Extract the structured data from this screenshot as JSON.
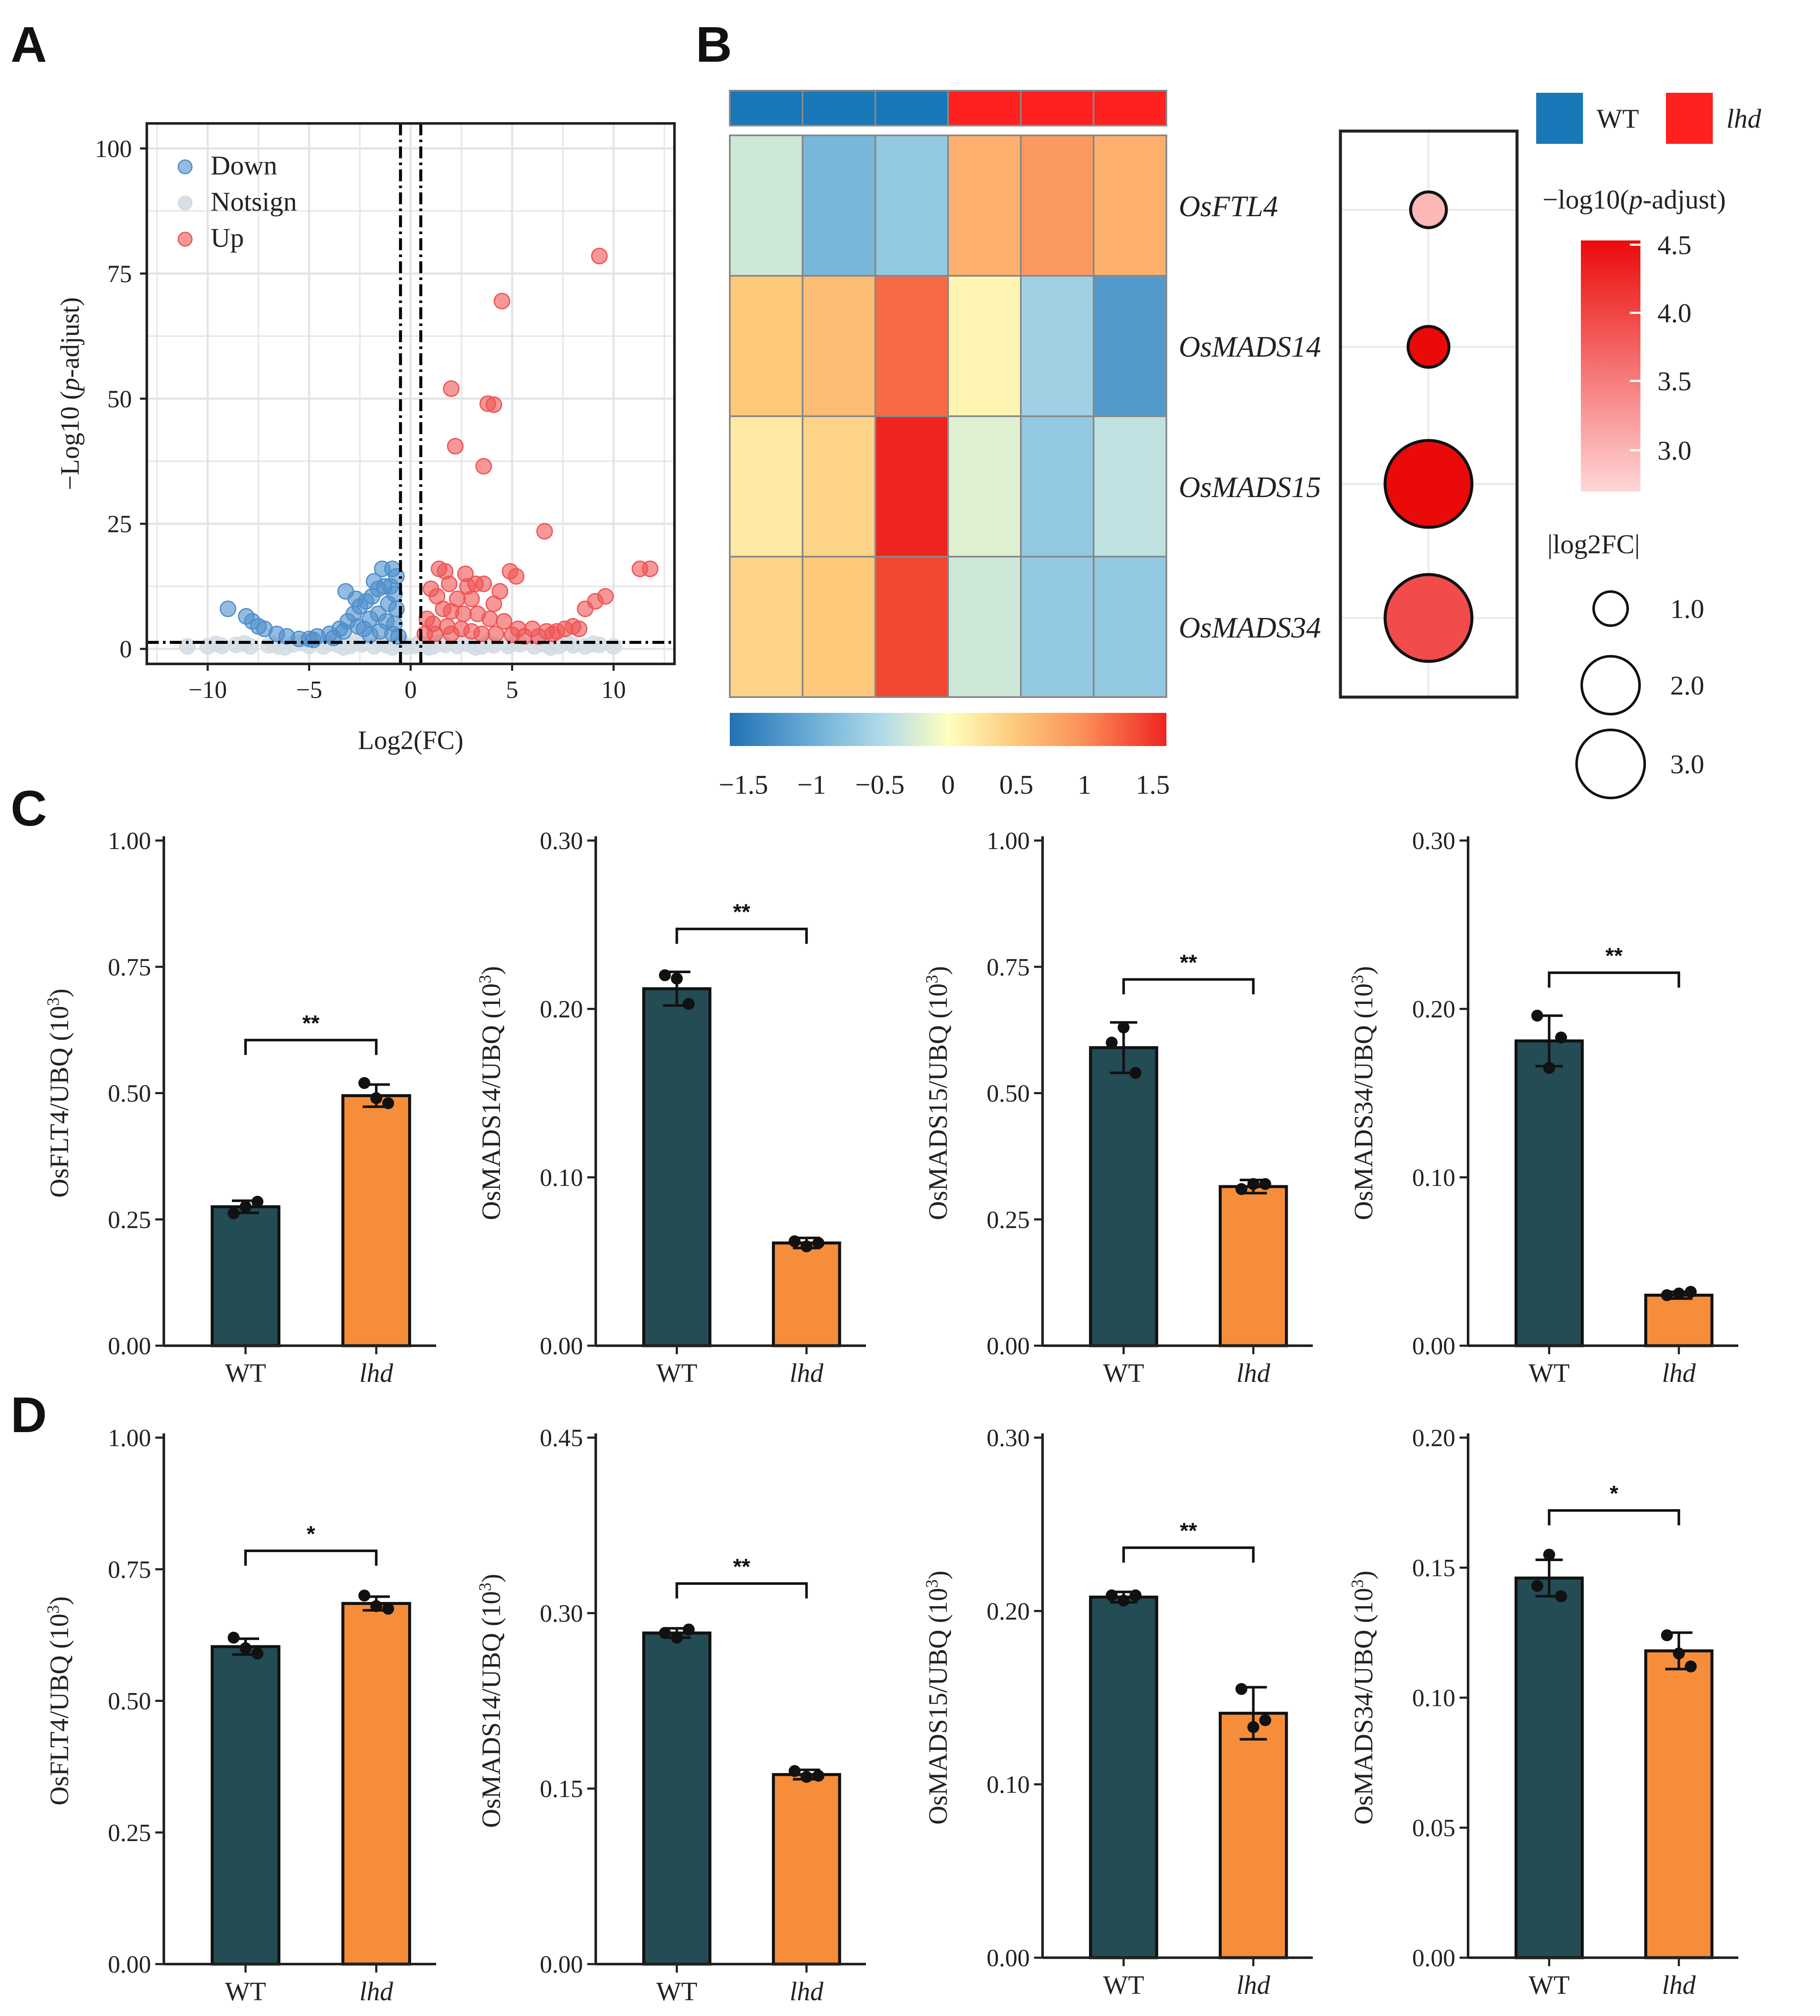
{
  "panels": {
    "A": "A",
    "B": "B",
    "C": "C",
    "D": "D"
  },
  "colors": {
    "wt": "#234c54",
    "lhd": "#f58d3a",
    "down": "#4e8fcb",
    "notsign": "#d4dde4",
    "up": "#f05454",
    "wt_legend": "#1878b8",
    "lhd_legend": "#ff2020"
  },
  "chart_data": [
    {
      "id": "A",
      "type": "scatter",
      "title": "",
      "xlabel": "Log2(FC)",
      "ylabel_prefix": "−Log10 (",
      "ylabel_italic": "p",
      "ylabel_suffix": "-adjust)",
      "xlim": [
        -13,
        13
      ],
      "ylim": [
        -3,
        105
      ],
      "xticks": [
        -10,
        -5,
        0,
        5,
        10
      ],
      "yticks": [
        0,
        25,
        50,
        75,
        100
      ],
      "thresholds": {
        "x": [
          -0.5,
          0.5
        ],
        "y": 1.3
      },
      "legend": [
        "Down",
        "Notsign",
        "Up"
      ],
      "series": [
        {
          "name": "Up",
          "points": [
            [
              9.3,
              78.5
            ],
            [
              4.5,
              69.5
            ],
            [
              2.0,
              52.0
            ],
            [
              3.8,
              49.0
            ],
            [
              4.1,
              48.8
            ],
            [
              2.2,
              40.5
            ],
            [
              3.6,
              36.5
            ],
            [
              6.6,
              23.5
            ],
            [
              11.3,
              16.0
            ],
            [
              11.8,
              16.0
            ],
            [
              1.4,
              16.0
            ],
            [
              1.7,
              15.5
            ],
            [
              2.7,
              15.0
            ],
            [
              4.9,
              15.5
            ],
            [
              5.2,
              14.5
            ],
            [
              3.2,
              13.0
            ],
            [
              3.6,
              13.0
            ],
            [
              9.6,
              10.5
            ],
            [
              9.1,
              9.5
            ],
            [
              8.6,
              8.0
            ],
            [
              1.0,
              12.0
            ],
            [
              1.3,
              10.5
            ],
            [
              2.3,
              10.0
            ],
            [
              3.0,
              10.0
            ],
            [
              4.1,
              9.0
            ],
            [
              1.6,
              8.0
            ],
            [
              2.0,
              7.5
            ],
            [
              2.6,
              7.0
            ],
            [
              3.3,
              7.0
            ],
            [
              3.9,
              6.0
            ],
            [
              4.6,
              5.5
            ],
            [
              5.3,
              4.0
            ],
            [
              6.0,
              4.0
            ],
            [
              6.7,
              3.5
            ],
            [
              7.2,
              3.5
            ],
            [
              7.6,
              4.0
            ],
            [
              8.0,
              4.5
            ],
            [
              0.8,
              6.0
            ],
            [
              1.1,
              5.0
            ],
            [
              1.8,
              4.5
            ],
            [
              2.5,
              4.0
            ],
            [
              3.0,
              3.5
            ],
            [
              3.5,
              3.0
            ],
            [
              4.2,
              3.0
            ],
            [
              5.0,
              2.8
            ],
            [
              5.6,
              2.5
            ],
            [
              6.3,
              2.5
            ],
            [
              7.0,
              3.0
            ],
            [
              0.7,
              3.0
            ],
            [
              1.2,
              3.0
            ],
            [
              2.0,
              3.0
            ],
            [
              8.3,
              4.0
            ],
            [
              2.8,
              12.5
            ],
            [
              1.9,
              13.0
            ],
            [
              4.4,
              11.5
            ]
          ]
        },
        {
          "name": "Down",
          "points": [
            [
              -9.0,
              8.0
            ],
            [
              -8.1,
              6.5
            ],
            [
              -7.8,
              5.5
            ],
            [
              -7.5,
              4.5
            ],
            [
              -7.2,
              4.0
            ],
            [
              -6.6,
              3.0
            ],
            [
              -6.1,
              2.5
            ],
            [
              -5.5,
              2.0
            ],
            [
              -5.0,
              2.0
            ],
            [
              -4.6,
              2.5
            ],
            [
              -4.0,
              3.0
            ],
            [
              -3.5,
              4.0
            ],
            [
              -3.1,
              5.5
            ],
            [
              -2.8,
              7.0
            ],
            [
              -2.5,
              8.5
            ],
            [
              -2.2,
              9.5
            ],
            [
              -3.2,
              11.5
            ],
            [
              -2.7,
              10.0
            ],
            [
              -1.9,
              10.5
            ],
            [
              -1.6,
              12.0
            ],
            [
              -1.3,
              12.5
            ],
            [
              -1.0,
              12.5
            ],
            [
              -0.8,
              11.0
            ],
            [
              -1.4,
              16.0
            ],
            [
              -0.9,
              16.0
            ],
            [
              -0.7,
              14.5
            ],
            [
              -1.1,
              9.0
            ],
            [
              -0.7,
              8.0
            ],
            [
              -1.6,
              7.0
            ],
            [
              -2.0,
              6.0
            ],
            [
              -1.2,
              5.5
            ],
            [
              -0.8,
              5.0
            ],
            [
              -2.6,
              4.5
            ],
            [
              -3.3,
              3.5
            ],
            [
              -1.5,
              3.5
            ],
            [
              -0.9,
              3.0
            ],
            [
              -2.0,
              2.8
            ],
            [
              -0.6,
              2.5
            ],
            [
              -4.8,
              1.8
            ],
            [
              -3.8,
              2.2
            ],
            [
              -1.8,
              13.5
            ],
            [
              -2.3,
              4.0
            ]
          ]
        },
        {
          "name": "Notsign",
          "points": [
            [
              -11.0,
              0.5
            ],
            [
              -10.0,
              0.5
            ],
            [
              -9.3,
              0.6
            ],
            [
              -8.6,
              0.8
            ],
            [
              -7.9,
              0.5
            ],
            [
              -7.0,
              0.7
            ],
            [
              -6.5,
              0.5
            ],
            [
              -5.8,
              0.9
            ],
            [
              -5.0,
              0.6
            ],
            [
              -4.3,
              0.5
            ],
            [
              -3.6,
              0.8
            ],
            [
              -3.0,
              0.6
            ],
            [
              -2.4,
              0.9
            ],
            [
              -1.8,
              0.5
            ],
            [
              -1.2,
              0.7
            ],
            [
              -0.6,
              1.0
            ],
            [
              -0.2,
              0.5
            ],
            [
              0.2,
              0.6
            ],
            [
              0.6,
              0.9
            ],
            [
              1.1,
              0.5
            ],
            [
              1.7,
              0.8
            ],
            [
              2.3,
              0.6
            ],
            [
              2.9,
              0.9
            ],
            [
              3.5,
              0.5
            ],
            [
              4.1,
              0.7
            ],
            [
              4.8,
              0.6
            ],
            [
              5.4,
              0.9
            ],
            [
              6.1,
              0.5
            ],
            [
              6.7,
              0.8
            ],
            [
              7.3,
              0.6
            ],
            [
              8.0,
              0.7
            ],
            [
              8.6,
              0.5
            ],
            [
              9.3,
              0.8
            ],
            [
              10.0,
              0.5
            ],
            [
              -9.6,
              1.0
            ],
            [
              -8.2,
              1.1
            ],
            [
              -6.8,
              1.0
            ],
            [
              -5.4,
              1.2
            ],
            [
              -4.0,
              1.1
            ],
            [
              -2.7,
              1.2
            ],
            [
              -1.5,
              1.1
            ],
            [
              -0.4,
              1.2
            ],
            [
              0.4,
              1.1
            ],
            [
              1.4,
              1.2
            ],
            [
              2.6,
              1.1
            ],
            [
              3.8,
              1.2
            ],
            [
              5.1,
              1.1
            ],
            [
              6.4,
              1.0
            ],
            [
              7.7,
              1.2
            ],
            [
              9.0,
              1.0
            ],
            [
              -0.9,
              0.3
            ],
            [
              0.9,
              0.3
            ],
            [
              -3.3,
              0.3
            ],
            [
              3.2,
              0.3
            ],
            [
              -6.2,
              0.3
            ],
            [
              6.9,
              0.3
            ]
          ]
        }
      ]
    },
    {
      "id": "B-heatmap",
      "type": "heatmap",
      "rows": [
        "OsFTL4",
        "OsMADS14",
        "OsMADS15",
        "OsMADS34"
      ],
      "columns": [
        "WT",
        "WT",
        "WT",
        "lhd",
        "lhd",
        "lhd"
      ],
      "values": [
        [
          -0.3,
          -0.9,
          -0.7,
          0.7,
          0.9,
          0.7
        ],
        [
          0.5,
          0.6,
          1.2,
          0.1,
          -0.6,
          -1.2
        ],
        [
          0.2,
          0.4,
          1.6,
          -0.2,
          -0.7,
          -0.4
        ],
        [
          0.4,
          0.5,
          1.4,
          -0.3,
          -0.7,
          -0.7
        ]
      ],
      "scale_ticks": [
        "−1.5",
        "−1",
        "−0.5",
        "0",
        "0.5",
        "1",
        "1.5"
      ],
      "legend": [
        "WT",
        "lhd"
      ]
    },
    {
      "id": "B-dot",
      "type": "scatter",
      "rows": [
        "OsFTL4",
        "OsMADS14",
        "OsMADS15",
        "OsMADS34"
      ],
      "neg_log10_padj": [
        2.9,
        4.5,
        4.5,
        3.9
      ],
      "abs_log2fc": [
        0.6,
        0.8,
        2.6,
        2.6
      ],
      "color_legend_title_prefix": "−log10(",
      "color_legend_title_italic": "p",
      "color_legend_title_suffix": "-adjust)",
      "color_ticks": [
        "4.5",
        "4.0",
        "3.5",
        "3.0"
      ],
      "size_legend_title": "|log2FC|",
      "size_ticks": [
        "1.0",
        "2.0",
        "3.0"
      ]
    },
    {
      "id": "C1",
      "type": "bar",
      "categories": [
        "WT",
        "lhd"
      ],
      "values": [
        0.275,
        0.495
      ],
      "errors": [
        0.012,
        0.022
      ],
      "points": [
        [
          0.262,
          0.275,
          0.285
        ],
        [
          0.52,
          0.49,
          0.48
        ]
      ],
      "ylim": [
        0,
        1.0
      ],
      "yticks": [
        "0.00",
        "0.25",
        "0.50",
        "0.75",
        "1.00"
      ],
      "gene": "OsFLT4",
      "ylabel_suffix": "/UBQ (10",
      "sup": "3",
      "close": ")",
      "significance": "**"
    },
    {
      "id": "C2",
      "type": "bar",
      "categories": [
        "WT",
        "lhd"
      ],
      "values": [
        0.212,
        0.061
      ],
      "errors": [
        0.01,
        0.003
      ],
      "points": [
        [
          0.22,
          0.218,
          0.203
        ],
        [
          0.062,
          0.059,
          0.061
        ]
      ],
      "ylim": [
        0,
        0.3
      ],
      "yticks": [
        "0.00",
        "0.10",
        "0.20",
        "0.30"
      ],
      "gene": "OsMADS14",
      "ylabel_suffix": "/UBQ (10",
      "sup": "3",
      "close": ")",
      "significance": "**"
    },
    {
      "id": "C3",
      "type": "bar",
      "categories": [
        "WT",
        "lhd"
      ],
      "values": [
        0.59,
        0.315
      ],
      "errors": [
        0.05,
        0.013
      ],
      "points": [
        [
          0.6,
          0.63,
          0.54
        ],
        [
          0.31,
          0.32,
          0.32
        ]
      ],
      "ylim": [
        0,
        1.0
      ],
      "yticks": [
        "0.00",
        "0.25",
        "0.50",
        "0.75",
        "1.00"
      ],
      "gene": "OsMADS15",
      "ylabel_suffix": "/UBQ (10",
      "sup": "3",
      "close": ")",
      "significance": "**"
    },
    {
      "id": "C4",
      "type": "bar",
      "categories": [
        "WT",
        "lhd"
      ],
      "values": [
        0.181,
        0.03
      ],
      "errors": [
        0.015,
        0.002
      ],
      "points": [
        [
          0.196,
          0.165,
          0.183
        ],
        [
          0.03,
          0.031,
          0.032
        ]
      ],
      "ylim": [
        0,
        0.3
      ],
      "yticks": [
        "0.00",
        "0.10",
        "0.20",
        "0.30"
      ],
      "gene": "OsMADS34",
      "ylabel_suffix": "/UBQ (10",
      "sup": "3",
      "close": ")",
      "significance": "**"
    },
    {
      "id": "D1",
      "type": "bar",
      "categories": [
        "WT",
        "lhd"
      ],
      "values": [
        0.603,
        0.685
      ],
      "errors": [
        0.015,
        0.013
      ],
      "points": [
        [
          0.62,
          0.6,
          0.59
        ],
        [
          0.7,
          0.68,
          0.675
        ]
      ],
      "ylim": [
        0,
        1.0
      ],
      "yticks": [
        "0.00",
        "0.25",
        "0.50",
        "0.75",
        "1.00"
      ],
      "gene": "OsFLT4",
      "ylabel_suffix": "/UBQ (10",
      "sup": "3",
      "close": ")",
      "significance": "*"
    },
    {
      "id": "D2",
      "type": "bar",
      "categories": [
        "WT",
        "lhd"
      ],
      "values": [
        0.283,
        0.162
      ],
      "errors": [
        0.004,
        0.004
      ],
      "points": [
        [
          0.283,
          0.279,
          0.286
        ],
        [
          0.165,
          0.16,
          0.161
        ]
      ],
      "ylim": [
        0,
        0.45
      ],
      "yticks": [
        "0.00",
        "0.15",
        "0.30",
        "0.45"
      ],
      "gene": "OsMADS14",
      "ylabel_suffix": "/UBQ (10",
      "sup": "3",
      "close": ")",
      "significance": "**"
    },
    {
      "id": "D3",
      "type": "bar",
      "categories": [
        "WT",
        "lhd"
      ],
      "values": [
        0.208,
        0.141
      ],
      "errors": [
        0.003,
        0.015
      ],
      "points": [
        [
          0.209,
          0.206,
          0.209
        ],
        [
          0.155,
          0.133,
          0.137
        ]
      ],
      "ylim": [
        0,
        0.3
      ],
      "yticks": [
        "0.00",
        "0.10",
        "0.20",
        "0.30"
      ],
      "gene": "OsMADS15",
      "ylabel_suffix": "/UBQ (10",
      "sup": "3",
      "close": ")",
      "significance": "**"
    },
    {
      "id": "D4",
      "type": "bar",
      "categories": [
        "WT",
        "lhd"
      ],
      "values": [
        0.146,
        0.118
      ],
      "errors": [
        0.007,
        0.007
      ],
      "points": [
        [
          0.143,
          0.155,
          0.139
        ],
        [
          0.124,
          0.117,
          0.112
        ]
      ],
      "ylim": [
        0,
        0.2
      ],
      "yticks": [
        "0.00",
        "0.05",
        "0.10",
        "0.15",
        "0.20"
      ],
      "gene": "OsMADS34",
      "ylabel_suffix": "/UBQ (10",
      "sup": "3",
      "close": ")",
      "significance": "*"
    }
  ]
}
